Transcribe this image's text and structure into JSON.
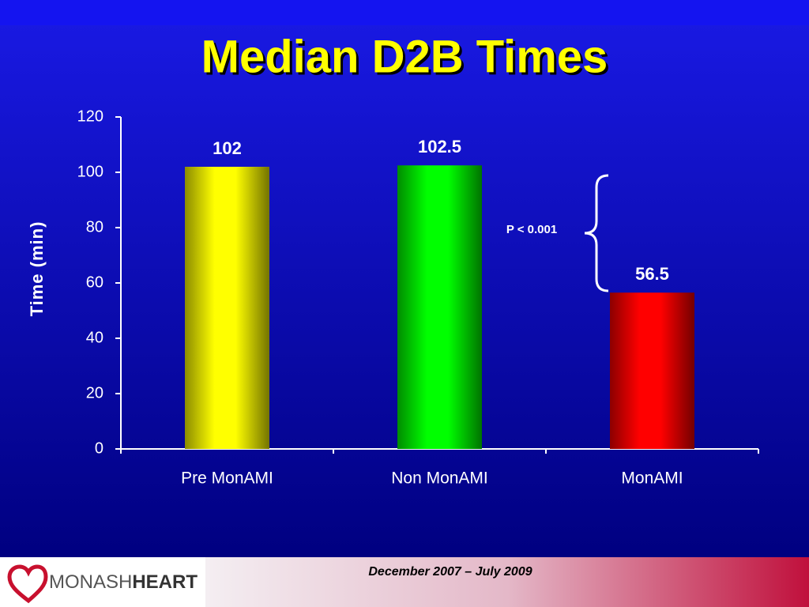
{
  "chart_data": {
    "type": "bar",
    "title": "Median D2B Times",
    "y_label": "Time  (min)",
    "categories": [
      "Pre MonAMI",
      "Non MonAMI",
      "MonAMI"
    ],
    "values": [
      102,
      102.5,
      56.5
    ],
    "colors": [
      "#ffff00",
      "#00ff00",
      "#ff0000"
    ],
    "ylim": [
      0,
      120
    ],
    "yticks": [
      0,
      20,
      40,
      60,
      80,
      100,
      120
    ],
    "annotation": "P < 0.001"
  },
  "footer": {
    "note": "December 2007 – July 2009",
    "logo": [
      "MONASH",
      "HEART"
    ]
  }
}
